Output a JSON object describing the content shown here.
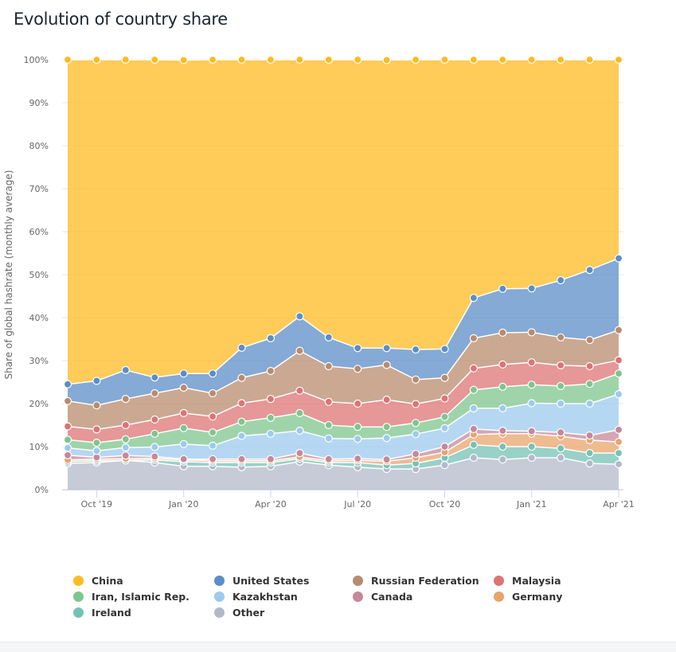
{
  "page": {
    "title": "Evolution of country share"
  },
  "chart_data": {
    "type": "area",
    "stacked": true,
    "title": "Evolution of country share",
    "xlabel": "",
    "ylabel": "Share of global hashrate (monthly average)",
    "ylim": [
      0,
      100
    ],
    "y_ticks": [
      "0%",
      "10%",
      "20%",
      "30%",
      "40%",
      "50%",
      "60%",
      "70%",
      "80%",
      "90%",
      "100%"
    ],
    "x": [
      "Sep '19",
      "Oct '19",
      "Nov '19",
      "Dec '19",
      "Jan '20",
      "Feb '20",
      "Mar '20",
      "Apr '20",
      "May '20",
      "Jun '20",
      "Jul '20",
      "Aug '20",
      "Sep '20",
      "Oct '20",
      "Nov '20",
      "Dec '20",
      "Jan '21",
      "Feb '21",
      "Mar '21",
      "Apr '21"
    ],
    "x_tick_labels": [
      {
        "index": 1,
        "label": "Oct '19"
      },
      {
        "index": 4,
        "label": "Jan '20"
      },
      {
        "index": 7,
        "label": "Apr '20"
      },
      {
        "index": 10,
        "label": "Jul '20"
      },
      {
        "index": 13,
        "label": "Oct '20"
      },
      {
        "index": 16,
        "label": "Jan '21"
      },
      {
        "index": 19,
        "label": "Apr '21"
      }
    ],
    "grid": true,
    "legend_position": "bottom",
    "series": [
      {
        "name": "Other",
        "color": "#b3b9c9",
        "values": [
          6.1,
          6.3,
          6.8,
          6.3,
          5.4,
          5.4,
          5.2,
          5.4,
          6.5,
          5.7,
          5.2,
          4.8,
          4.8,
          5.7,
          7.4,
          7.0,
          7.4,
          7.4,
          6.1,
          5.9
        ]
      },
      {
        "name": "Ireland",
        "color": "#76c1b5",
        "values": [
          0.4,
          0.4,
          0.0,
          0.6,
          1.1,
          0.9,
          1.1,
          0.9,
          0.7,
          0.6,
          1.1,
          0.9,
          1.3,
          1.7,
          3.0,
          3.0,
          2.6,
          2.2,
          2.4,
          2.6
        ]
      },
      {
        "name": "Germany",
        "color": "#e9a46c",
        "values": [
          0.4,
          0.4,
          0.4,
          0.4,
          0.4,
          0.4,
          0.4,
          0.4,
          0.4,
          0.4,
          0.5,
          0.9,
          1.3,
          1.3,
          2.4,
          3.0,
          3.0,
          2.8,
          3.0,
          2.6
        ]
      },
      {
        "name": "Canada",
        "color": "#c5889b",
        "values": [
          1.1,
          0.4,
          0.7,
          0.4,
          0.2,
          0.4,
          0.4,
          0.4,
          0.9,
          0.4,
          0.4,
          0.4,
          0.9,
          1.3,
          1.3,
          0.7,
          0.6,
          0.9,
          1.1,
          2.8
        ]
      },
      {
        "name": "Kazakhstan",
        "color": "#9dcaee",
        "values": [
          1.7,
          1.5,
          1.9,
          2.2,
          3.5,
          3.1,
          5.4,
          5.9,
          5.2,
          4.8,
          4.6,
          5.0,
          4.6,
          4.3,
          4.8,
          5.2,
          6.5,
          6.7,
          7.4,
          8.3
        ]
      },
      {
        "name": "Iran, Islamic Rep.",
        "color": "#7fc58e",
        "values": [
          1.9,
          1.9,
          1.9,
          3.1,
          3.7,
          3.1,
          3.3,
          3.7,
          4.1,
          3.1,
          2.8,
          2.6,
          2.6,
          2.6,
          4.3,
          5.0,
          4.3,
          4.1,
          4.6,
          4.8
        ]
      },
      {
        "name": "Malaysia",
        "color": "#dd7474",
        "values": [
          3.1,
          3.1,
          3.3,
          3.3,
          3.5,
          3.7,
          4.3,
          4.4,
          5.2,
          5.4,
          5.4,
          6.3,
          4.4,
          4.3,
          5.0,
          5.2,
          5.2,
          4.8,
          4.1,
          3.1
        ]
      },
      {
        "name": "Russian Federation",
        "color": "#b98b6e",
        "values": [
          5.9,
          5.6,
          6.1,
          6.1,
          5.9,
          5.4,
          5.9,
          6.5,
          9.3,
          8.3,
          8.1,
          8.1,
          5.7,
          4.8,
          7.0,
          7.4,
          7.0,
          6.5,
          6.1,
          7.0
        ]
      },
      {
        "name": "United States",
        "color": "#5b8ec7",
        "values": [
          3.9,
          5.7,
          6.7,
          3.7,
          3.3,
          4.6,
          7.0,
          7.6,
          8.0,
          6.7,
          4.8,
          3.9,
          7.0,
          6.7,
          9.4,
          10.2,
          10.2,
          13.3,
          16.3,
          16.7
        ]
      },
      {
        "name": "China",
        "color": "#ffba22",
        "values": [
          75.5,
          74.7,
          72.2,
          73.9,
          72.9,
          73.0,
          67.0,
          64.8,
          59.7,
          64.6,
          67.1,
          67.0,
          67.4,
          67.5,
          55.4,
          53.3,
          53.2,
          51.3,
          48.9,
          46.2
        ]
      }
    ]
  },
  "legend": {
    "items": [
      {
        "name": "China",
        "color": "#ffba22"
      },
      {
        "name": "United States",
        "color": "#5b8ec7"
      },
      {
        "name": "Russian Federation",
        "color": "#b98b6e"
      },
      {
        "name": "Malaysia",
        "color": "#dd7474"
      },
      {
        "name": "Iran, Islamic Rep.",
        "color": "#7fc58e"
      },
      {
        "name": "Kazakhstan",
        "color": "#9dcaee"
      },
      {
        "name": "Canada",
        "color": "#c5889b"
      },
      {
        "name": "Germany",
        "color": "#e9a46c"
      },
      {
        "name": "Ireland",
        "color": "#76c1b5"
      },
      {
        "name": "Other",
        "color": "#b3b9c9"
      }
    ]
  }
}
